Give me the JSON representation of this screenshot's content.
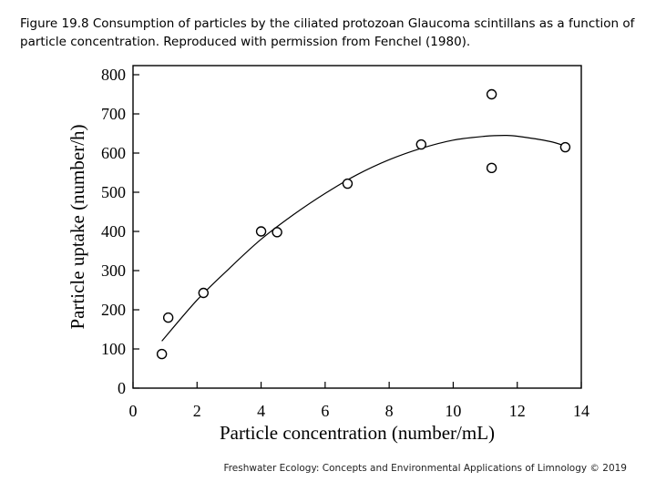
{
  "caption": "Figure 19.8 Consumption of particles by the ciliated protozoan Glaucoma scintillans as a function of particle concentration. Reproduced with permission from Fenchel (1980).",
  "footer": "Freshwater Ecology: Concepts and Environmental Applications of Limnology © 2019",
  "chart_data": {
    "type": "scatter",
    "title": "",
    "xlabel": "Particle concentration (number/mL)",
    "ylabel": "Particle uptake (number/h)",
    "xlim": [
      0,
      14
    ],
    "ylim": [
      0,
      800
    ],
    "xticks": [
      0,
      2,
      4,
      6,
      8,
      10,
      12,
      14
    ],
    "yticks": [
      0,
      100,
      200,
      300,
      400,
      500,
      600,
      700,
      800
    ],
    "grid": false,
    "series": [
      {
        "name": "observations",
        "marker": "open-circle",
        "x": [
          0.9,
          1.1,
          2.2,
          4.0,
          4.5,
          6.7,
          9.0,
          11.2,
          11.2,
          13.5
        ],
        "y": [
          87,
          180,
          243,
          400,
          398,
          522,
          622,
          750,
          562,
          615
        ]
      },
      {
        "name": "fitted curve",
        "type": "line",
        "x": [
          0.9,
          2,
          3,
          4,
          5,
          6,
          7,
          8,
          9,
          10,
          11,
          11.6,
          12,
          13,
          13.5
        ],
        "y": [
          120,
          225,
          305,
          380,
          442,
          497,
          545,
          583,
          612,
          633,
          643,
          645,
          643,
          630,
          618
        ]
      }
    ]
  }
}
